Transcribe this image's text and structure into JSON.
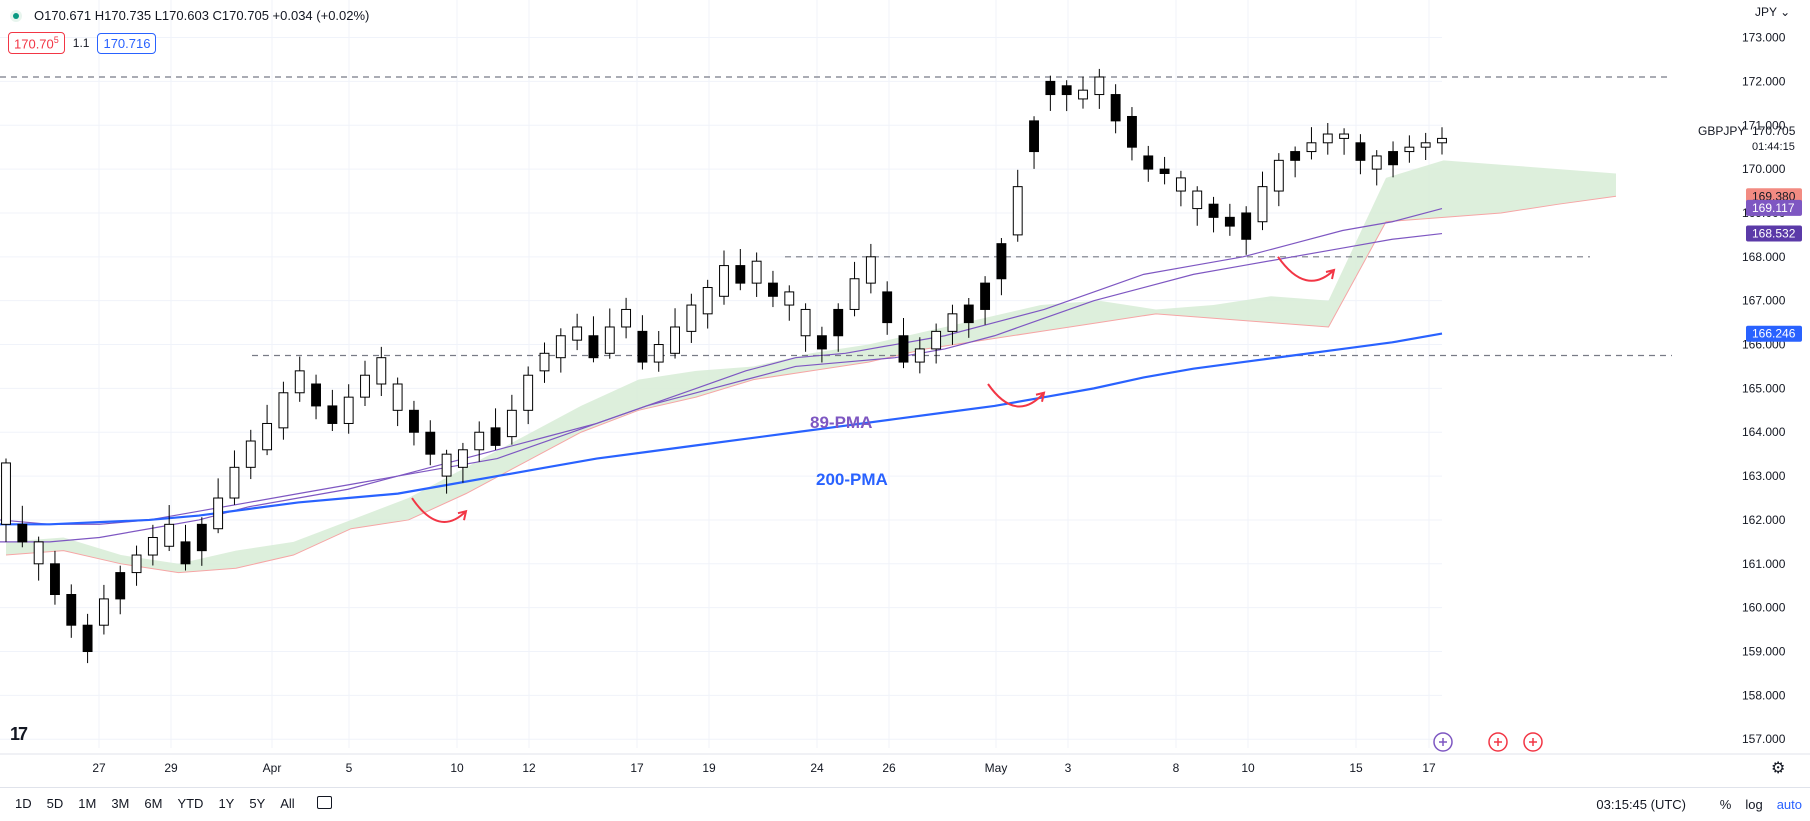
{
  "header": {
    "ohlc": "O170.671 H170.735 L170.603 C170.705 +0.034 (+0.02%)",
    "bid_main": "170.70",
    "bid_small": "5",
    "spread": "1.1",
    "ask": "170.716"
  },
  "symbol": "GBPJPY",
  "currency": "JPY",
  "countdown": "01:44:15",
  "time_utc": "03:15:45 (UTC)",
  "timeframes": [
    "1D",
    "5D",
    "1M",
    "3M",
    "6M",
    "YTD",
    "1Y",
    "5Y",
    "All"
  ],
  "scale_modes": {
    "percent": "%",
    "log": "log",
    "auto": "auto"
  },
  "colors": {
    "up": "#ffffff",
    "down": "#000000",
    "ma89": "#7e57c2",
    "ma200": "#2962ff",
    "cloud_bull": "#d7ecd6",
    "cloud_bear": "#fbd5d5",
    "annotation": "#f23645",
    "last_price_tag": "#f28b82",
    "ma89_tag": "#7e57c2",
    "ma_mid_tag": "#5b3aa8",
    "ma200_tag": "#2962ff"
  },
  "chart_data": {
    "type": "candlestick",
    "symbol": "GBPJPY",
    "y_range": [
      156.8,
      173.4
    ],
    "y_ticks": [
      157,
      158,
      159,
      160,
      161,
      162,
      163,
      164,
      165,
      166,
      167,
      168,
      169,
      170,
      171,
      172,
      173
    ],
    "x_labels": [
      "27",
      "29",
      "Apr",
      "5",
      "10",
      "12",
      "17",
      "19",
      "24",
      "26",
      "May",
      "3",
      "8",
      "10",
      "15",
      "17"
    ],
    "price_tags": [
      {
        "label": "GBPJPY",
        "value": 170.705,
        "kind": "last"
      },
      {
        "label": "",
        "value": 169.38,
        "kind": "cloud"
      },
      {
        "label": "",
        "value": 169.117,
        "kind": "ma89"
      },
      {
        "label": "",
        "value": 168.532,
        "kind": "ma_mid"
      },
      {
        "label": "",
        "value": 166.246,
        "kind": "ma200"
      }
    ],
    "horizontal_levels": [
      172.1,
      168.0,
      165.75
    ],
    "annotations": [
      {
        "text": "89-PMA",
        "color": "#7e57c2"
      },
      {
        "text": "200-PMA",
        "color": "#2962ff"
      }
    ],
    "anchors": [
      [
        161.9,
        163.3
      ],
      [
        161.5,
        161.9
      ],
      [
        161.0,
        161.5
      ],
      [
        160.3,
        161.0
      ],
      [
        159.6,
        160.3
      ],
      [
        159.0,
        159.6
      ],
      [
        159.6,
        160.2
      ],
      [
        160.2,
        160.8
      ],
      [
        160.8,
        161.2
      ],
      [
        161.2,
        161.6
      ],
      [
        161.4,
        161.9
      ],
      [
        161.0,
        161.5
      ],
      [
        161.3,
        161.9
      ],
      [
        161.8,
        162.5
      ],
      [
        162.5,
        163.2
      ],
      [
        163.2,
        163.8
      ],
      [
        163.6,
        164.2
      ],
      [
        164.1,
        164.9
      ],
      [
        164.9,
        165.4
      ],
      [
        164.6,
        165.1
      ],
      [
        164.2,
        164.6
      ],
      [
        164.2,
        164.8
      ],
      [
        164.8,
        165.3
      ],
      [
        165.1,
        165.7
      ],
      [
        164.5,
        165.1
      ],
      [
        164.0,
        164.5
      ],
      [
        163.5,
        164.0
      ],
      [
        163.0,
        163.5
      ],
      [
        163.2,
        163.6
      ],
      [
        163.6,
        164.0
      ],
      [
        163.7,
        164.1
      ],
      [
        163.9,
        164.5
      ],
      [
        164.5,
        165.3
      ],
      [
        165.4,
        165.8
      ],
      [
        165.7,
        166.2
      ],
      [
        166.1,
        166.4
      ],
      [
        165.7,
        166.2
      ],
      [
        165.8,
        166.4
      ],
      [
        166.4,
        166.8
      ],
      [
        165.6,
        166.3
      ],
      [
        165.6,
        166.0
      ],
      [
        165.8,
        166.4
      ],
      [
        166.3,
        166.9
      ],
      [
        166.7,
        167.3
      ],
      [
        167.1,
        167.8
      ],
      [
        167.4,
        167.8
      ],
      [
        167.4,
        167.9
      ],
      [
        167.1,
        167.4
      ],
      [
        166.9,
        167.2
      ],
      [
        166.2,
        166.8
      ],
      [
        165.9,
        166.2
      ],
      [
        166.2,
        166.8
      ],
      [
        166.8,
        167.5
      ],
      [
        167.4,
        168.0
      ],
      [
        166.5,
        167.2
      ],
      [
        165.6,
        166.2
      ],
      [
        165.6,
        165.9
      ],
      [
        165.9,
        166.3
      ],
      [
        166.3,
        166.7
      ],
      [
        166.5,
        166.9
      ],
      [
        166.8,
        167.4
      ],
      [
        167.5,
        168.3
      ],
      [
        168.5,
        169.6
      ],
      [
        170.4,
        171.1
      ],
      [
        171.7,
        172.0
      ],
      [
        171.7,
        171.9
      ],
      [
        171.6,
        171.8
      ],
      [
        171.7,
        172.1
      ],
      [
        171.1,
        171.7
      ],
      [
        170.5,
        171.2
      ],
      [
        170.0,
        170.3
      ],
      [
        169.9,
        170.0
      ],
      [
        169.5,
        169.8
      ],
      [
        169.1,
        169.5
      ],
      [
        168.9,
        169.2
      ],
      [
        168.7,
        168.9
      ],
      [
        168.4,
        169.0
      ],
      [
        168.8,
        169.6
      ],
      [
        169.5,
        170.2
      ],
      [
        170.2,
        170.4
      ],
      [
        170.4,
        170.6
      ],
      [
        170.6,
        170.8
      ],
      [
        170.7,
        170.8
      ],
      [
        170.2,
        170.6
      ],
      [
        170.0,
        170.3
      ],
      [
        170.1,
        170.4
      ],
      [
        170.4,
        170.5
      ],
      [
        170.5,
        170.6
      ],
      [
        170.6,
        170.7
      ]
    ],
    "ma89": [
      162.0,
      161.9,
      161.9,
      162.0,
      162.2,
      162.4,
      162.6,
      162.8,
      163.0,
      163.2,
      163.4,
      163.8,
      164.2,
      164.6,
      165.0,
      165.4,
      165.7,
      165.8,
      166.0,
      166.2,
      166.5,
      166.8,
      167.2,
      167.6,
      167.8,
      168.0,
      168.3,
      168.6,
      168.8,
      169.1
    ],
    "ma_mid": [
      161.5,
      161.5,
      161.6,
      161.8,
      162.0,
      162.3,
      162.5,
      162.7,
      163.0,
      163.3,
      163.6,
      163.9,
      164.2,
      164.6,
      164.9,
      165.2,
      165.5,
      165.6,
      165.7,
      165.9,
      166.2,
      166.6,
      167.0,
      167.3,
      167.6,
      167.8,
      168.0,
      168.2,
      168.4,
      168.53
    ],
    "ma200": [
      161.9,
      161.9,
      161.95,
      162.0,
      162.1,
      162.25,
      162.4,
      162.5,
      162.6,
      162.8,
      163.0,
      163.2,
      163.4,
      163.55,
      163.7,
      163.85,
      164.0,
      164.15,
      164.3,
      164.45,
      164.6,
      164.8,
      165.0,
      165.25,
      165.45,
      165.6,
      165.75,
      165.9,
      166.05,
      166.25
    ],
    "cloud_upper": [
      161.5,
      161.6,
      161.2,
      161.0,
      161.3,
      161.5,
      162.0,
      162.5,
      163.2,
      163.9,
      164.6,
      165.2,
      165.4,
      165.5,
      165.8,
      166.0,
      166.3,
      166.6,
      166.9,
      167.0,
      166.8,
      166.9,
      167.1,
      167.0,
      169.8,
      170.2,
      170.1,
      170.0,
      169.9
    ],
    "cloud_lower": [
      161.2,
      161.3,
      161.0,
      160.8,
      160.9,
      161.2,
      161.8,
      162.0,
      162.6,
      163.3,
      164.0,
      164.5,
      164.8,
      165.2,
      165.4,
      165.6,
      165.9,
      166.1,
      166.3,
      166.5,
      166.7,
      166.6,
      166.5,
      166.4,
      168.8,
      168.9,
      169.0,
      169.2,
      169.38
    ]
  }
}
